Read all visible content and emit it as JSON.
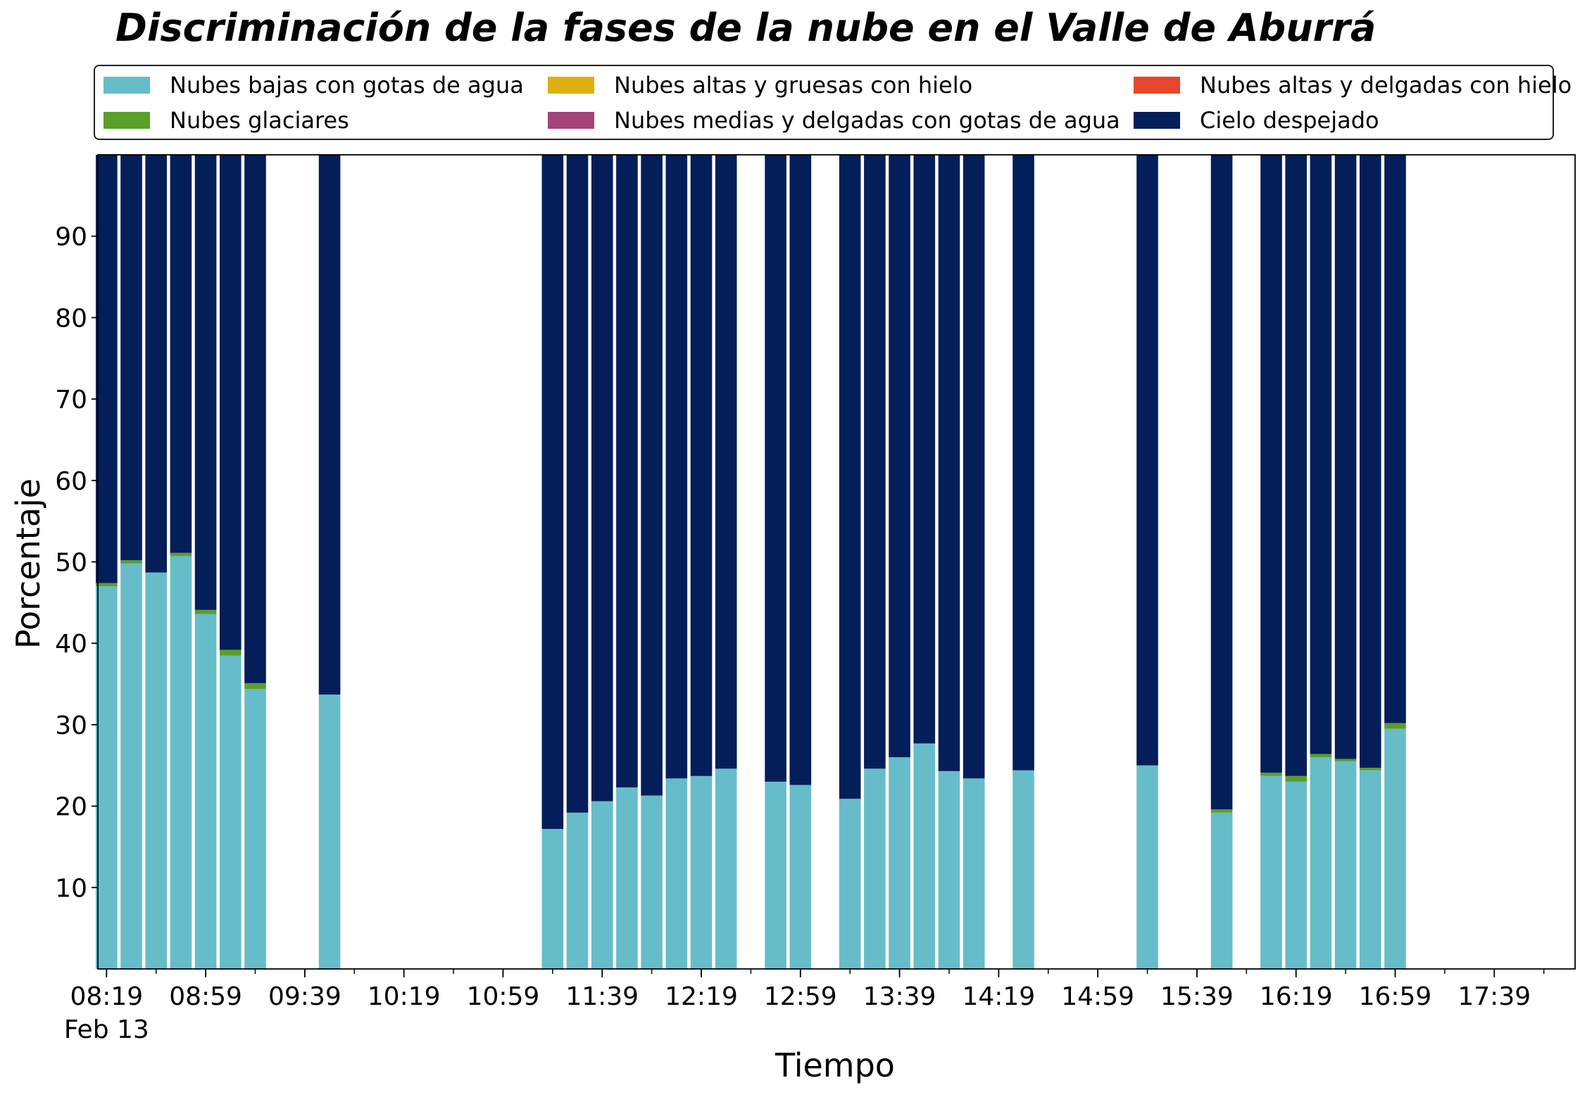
{
  "chart_data": {
    "type": "bar",
    "stacked": true,
    "title": "Discriminación de la fases de la nube en el Valle de Aburrá",
    "xlabel": "Tiempo",
    "ylabel": "Porcentaje",
    "ylim": [
      0,
      100
    ],
    "yticks": [
      10,
      20,
      30,
      40,
      50,
      60,
      70,
      80,
      90
    ],
    "x_axis": {
      "date_label": "Feb 13",
      "range": [
        "08:19",
        "18:09"
      ],
      "major_ticks": [
        "08:19",
        "08:59",
        "09:39",
        "10:19",
        "10:59",
        "11:39",
        "12:19",
        "12:59",
        "13:39",
        "14:19",
        "14:59",
        "15:39",
        "16:19",
        "16:59",
        "17:39"
      ],
      "minor_tick_interval_minutes": 20,
      "bar_interval_minutes": 10
    },
    "grid": false,
    "legend_position": "top",
    "times": [
      "08:19",
      "08:29",
      "08:39",
      "08:49",
      "08:59",
      "09:09",
      "09:19",
      "09:49",
      "11:19",
      "11:29",
      "11:39",
      "11:49",
      "11:59",
      "12:09",
      "12:19",
      "12:29",
      "12:49",
      "12:59",
      "13:19",
      "13:29",
      "13:39",
      "13:49",
      "13:59",
      "14:09",
      "14:29",
      "15:19",
      "15:49",
      "16:09",
      "16:19",
      "16:29",
      "16:39",
      "16:49",
      "16:59"
    ],
    "series": [
      {
        "name": "Nubes bajas con gotas de agua",
        "color": "#66bdc9",
        "values": [
          47.0,
          49.8,
          48.7,
          50.7,
          43.6,
          38.5,
          34.4,
          33.7,
          17.2,
          19.2,
          20.6,
          22.3,
          21.3,
          23.4,
          23.7,
          24.6,
          23.0,
          22.6,
          20.9,
          24.6,
          26.0,
          27.7,
          24.3,
          23.4,
          24.4,
          25.0,
          19.2,
          23.7,
          23.0,
          26.0,
          25.5,
          24.4,
          29.5
        ]
      },
      {
        "name": "Nubes glaciares",
        "color": "#5b9e2a",
        "values": [
          0.4,
          0.4,
          0,
          0.4,
          0.5,
          0.7,
          0.7,
          0,
          0,
          0,
          0,
          0,
          0,
          0,
          0,
          0,
          0,
          0,
          0,
          0,
          0,
          0,
          0,
          0,
          0,
          0,
          0.4,
          0.4,
          0.7,
          0.4,
          0.3,
          0.3,
          0.7
        ]
      },
      {
        "name": "Nubes altas y gruesas con hielo",
        "color": "#ddb012",
        "values": [
          0,
          0,
          0,
          0,
          0,
          0,
          0,
          0,
          0,
          0,
          0,
          0,
          0,
          0,
          0,
          0,
          0,
          0,
          0,
          0,
          0,
          0,
          0,
          0,
          0,
          0,
          0,
          0,
          0,
          0,
          0,
          0,
          0
        ]
      },
      {
        "name": "Nubes medias y delgadas con gotas de agua",
        "color": "#a3437a",
        "values": [
          0,
          0,
          0,
          0,
          0,
          0,
          0,
          0,
          0,
          0,
          0,
          0,
          0,
          0,
          0,
          0,
          0,
          0,
          0,
          0,
          0,
          0,
          0,
          0,
          0,
          0,
          0,
          0,
          0,
          0,
          0,
          0,
          0
        ]
      },
      {
        "name": "Nubes altas y delgadas con hielo",
        "color": "#e8462a",
        "values": [
          0,
          0,
          0,
          0,
          0,
          0,
          0,
          0,
          0,
          0,
          0,
          0,
          0,
          0,
          0,
          0,
          0,
          0,
          0,
          0,
          0,
          0,
          0,
          0,
          0,
          0,
          0,
          0,
          0,
          0,
          0,
          0,
          0
        ]
      },
      {
        "name": "Cielo despejado",
        "color": "#041e5a",
        "values": [
          52.6,
          49.8,
          51.3,
          48.9,
          55.9,
          60.8,
          64.9,
          66.3,
          82.8,
          80.8,
          79.4,
          77.7,
          78.7,
          76.6,
          76.3,
          75.4,
          77.0,
          77.4,
          79.1,
          75.4,
          74.0,
          72.3,
          75.7,
          76.6,
          75.6,
          75.0,
          80.4,
          75.9,
          76.3,
          73.6,
          74.2,
          75.3,
          69.8
        ]
      }
    ]
  }
}
